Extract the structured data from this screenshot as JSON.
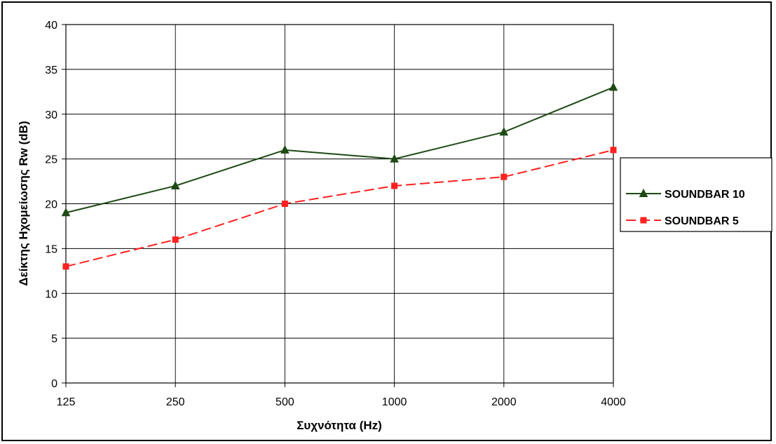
{
  "chart_data": {
    "type": "line",
    "categories": [
      "125",
      "250",
      "500",
      "1000",
      "2000",
      "4000"
    ],
    "xlabel": "Συχνότητα (Hz)",
    "ylabel": "Δείκτης Ηχομείωσης Rw (dB)",
    "ylim": [
      0,
      40
    ],
    "yticks": [
      "0",
      "5",
      "10",
      "15",
      "20",
      "25",
      "30",
      "35",
      "40"
    ],
    "grid": true,
    "legend_position": "right",
    "series": [
      {
        "name": "SOUNDBAR 10",
        "values": [
          19,
          22,
          26,
          25,
          28,
          33
        ],
        "color": "#1e4a14",
        "marker": "triangle",
        "dash": "solid"
      },
      {
        "name": "SOUNDBAR 5",
        "values": [
          13,
          16,
          20,
          22,
          23,
          26
        ],
        "color": "#ff2020",
        "marker": "square",
        "dash": "dashed"
      }
    ]
  }
}
